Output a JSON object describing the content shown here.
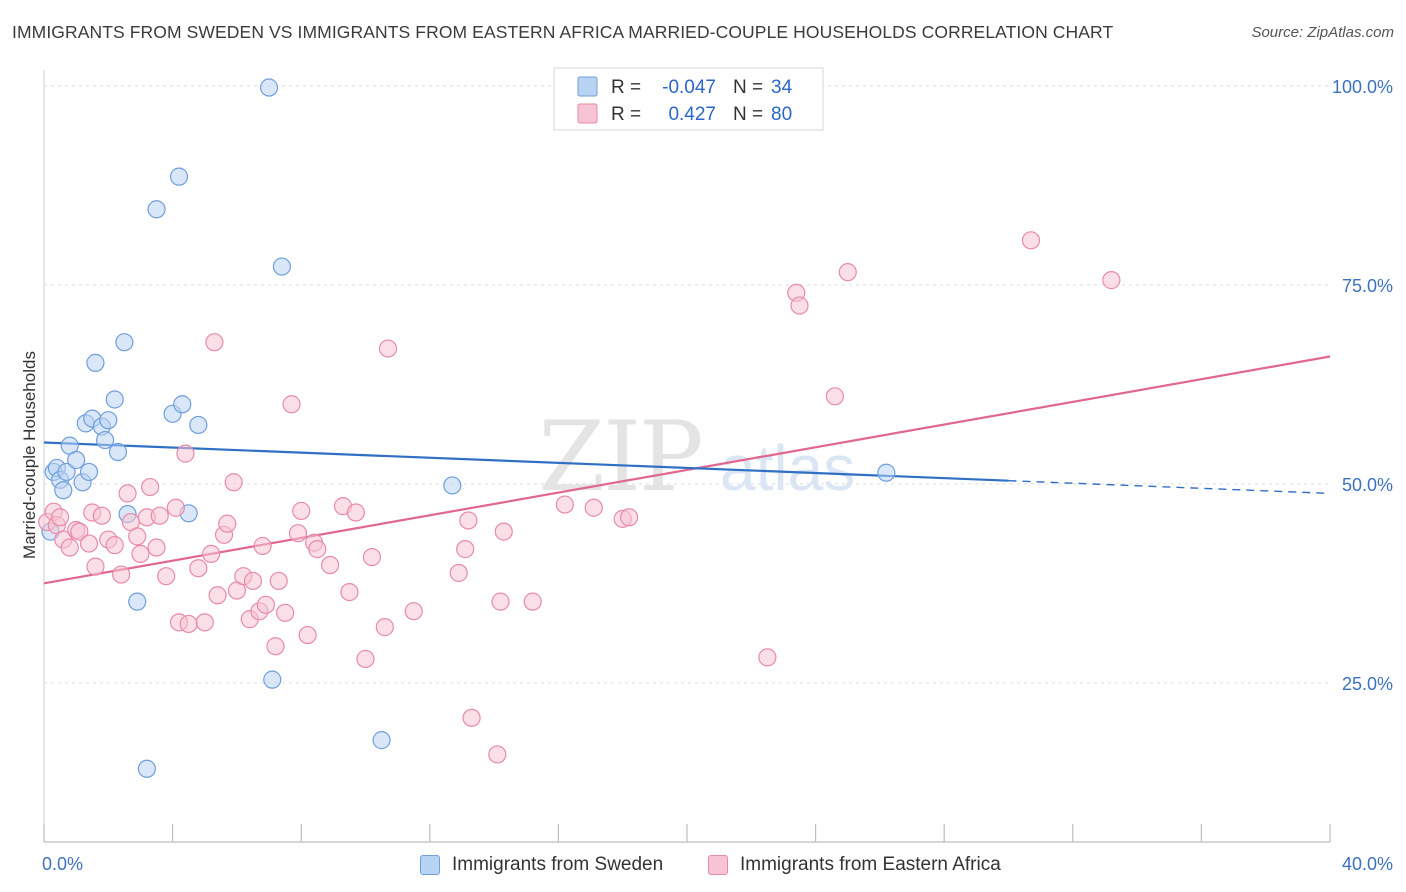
{
  "title": "IMMIGRANTS FROM SWEDEN VS IMMIGRANTS FROM EASTERN AFRICA MARRIED-COUPLE HOUSEHOLDS CORRELATION CHART",
  "source": "Source: ZipAtlas.com",
  "watermark": {
    "zip": "ZIP",
    "atlas": "atlas"
  },
  "colors": {
    "sweden_fill": "#b9d3f2",
    "sweden_stroke": "#6f9fdc",
    "sweden_line": "#2f6fc4",
    "eafrica_fill": "#f6c4d4",
    "eafrica_stroke": "#e88aaa",
    "eafrica_line": "#e0688f",
    "tick_label": "#3c72c0",
    "stat_value": "#2a67c9"
  },
  "stats": [
    {
      "r_label": "R = ",
      "r_value": "-0.047",
      "n_label": "N = ",
      "n_value": "34"
    },
    {
      "r_label": "R = ",
      "r_value": "0.427",
      "n_label": "N = ",
      "n_value": "80"
    }
  ],
  "legend": [
    {
      "label": "Immigrants from Sweden"
    },
    {
      "label": "Immigrants from Eastern Africa"
    }
  ],
  "chart_data": {
    "type": "scatter",
    "title": "IMMIGRANTS FROM SWEDEN VS IMMIGRANTS FROM EASTERN AFRICA MARRIED-COUPLE HOUSEHOLDS CORRELATION CHART",
    "xlabel": "",
    "ylabel": "Married-couple Households",
    "xlim": [
      0,
      40
    ],
    "ylim": [
      5,
      102
    ],
    "x_tick_labels": [
      {
        "value": 0,
        "label": "0.0%"
      },
      {
        "value": 40,
        "label": "40.0%"
      }
    ],
    "y_tick_labels": [
      {
        "value": 100,
        "label": "100.0%"
      },
      {
        "value": 75,
        "label": "75.0%"
      },
      {
        "value": 50,
        "label": "50.0%"
      },
      {
        "value": 25,
        "label": "25.0%"
      }
    ],
    "y_grid": [
      100,
      75,
      50,
      25
    ],
    "series": [
      {
        "name": "Immigrants from Sweden",
        "r": -0.047,
        "n": 34,
        "trend": {
          "x0": 0,
          "y0": 55.2,
          "x1": 30,
          "y1": 50.4,
          "dash_x1": 40,
          "dash_y1": 48.8
        },
        "points": [
          [
            0.2,
            44.0
          ],
          [
            0.3,
            51.5
          ],
          [
            0.4,
            52.0
          ],
          [
            0.5,
            50.5
          ],
          [
            0.6,
            49.2
          ],
          [
            0.7,
            51.5
          ],
          [
            0.8,
            54.8
          ],
          [
            1.0,
            53.0
          ],
          [
            1.2,
            50.2
          ],
          [
            1.3,
            57.6
          ],
          [
            1.4,
            51.5
          ],
          [
            1.5,
            58.2
          ],
          [
            1.6,
            65.2
          ],
          [
            1.8,
            57.2
          ],
          [
            1.9,
            55.5
          ],
          [
            2.0,
            58.0
          ],
          [
            2.2,
            60.6
          ],
          [
            2.3,
            54.0
          ],
          [
            2.5,
            67.8
          ],
          [
            2.6,
            46.2
          ],
          [
            2.9,
            35.2
          ],
          [
            3.2,
            14.2
          ],
          [
            3.5,
            84.5
          ],
          [
            4.0,
            58.8
          ],
          [
            4.2,
            88.6
          ],
          [
            4.3,
            60.0
          ],
          [
            4.5,
            46.3
          ],
          [
            4.8,
            57.4
          ],
          [
            7.0,
            99.8
          ],
          [
            7.1,
            25.4
          ],
          [
            7.4,
            77.3
          ],
          [
            10.5,
            17.8
          ],
          [
            12.7,
            49.8
          ],
          [
            26.2,
            51.4
          ]
        ]
      },
      {
        "name": "Immigrants from Eastern Africa",
        "r": 0.427,
        "n": 80,
        "trend": {
          "x0": 0,
          "y0": 37.5,
          "x1": 40,
          "y1": 66.0
        },
        "points": [
          [
            0.1,
            45.2
          ],
          [
            0.3,
            46.5
          ],
          [
            0.4,
            44.8
          ],
          [
            0.5,
            45.8
          ],
          [
            0.6,
            43.0
          ],
          [
            0.8,
            42.0
          ],
          [
            1.0,
            44.2
          ],
          [
            1.1,
            44.0
          ],
          [
            1.4,
            42.5
          ],
          [
            1.5,
            46.4
          ],
          [
            1.6,
            39.6
          ],
          [
            1.8,
            46.0
          ],
          [
            2.0,
            43.0
          ],
          [
            2.2,
            42.3
          ],
          [
            2.4,
            38.6
          ],
          [
            2.6,
            48.8
          ],
          [
            2.7,
            45.2
          ],
          [
            2.9,
            43.4
          ],
          [
            3.0,
            41.2
          ],
          [
            3.2,
            45.8
          ],
          [
            3.3,
            49.6
          ],
          [
            3.5,
            42.0
          ],
          [
            3.6,
            46.0
          ],
          [
            3.8,
            38.4
          ],
          [
            4.1,
            47.0
          ],
          [
            4.2,
            32.6
          ],
          [
            4.4,
            53.8
          ],
          [
            4.5,
            32.4
          ],
          [
            4.8,
            39.4
          ],
          [
            5.0,
            32.6
          ],
          [
            5.2,
            41.2
          ],
          [
            5.3,
            67.8
          ],
          [
            5.4,
            36.0
          ],
          [
            5.6,
            43.6
          ],
          [
            5.7,
            45.0
          ],
          [
            5.9,
            50.2
          ],
          [
            6.0,
            36.6
          ],
          [
            6.2,
            38.4
          ],
          [
            6.4,
            33.0
          ],
          [
            6.5,
            37.8
          ],
          [
            6.7,
            34.0
          ],
          [
            6.8,
            42.2
          ],
          [
            6.9,
            34.8
          ],
          [
            7.2,
            29.6
          ],
          [
            7.3,
            37.8
          ],
          [
            7.5,
            33.8
          ],
          [
            7.7,
            60.0
          ],
          [
            7.9,
            43.8
          ],
          [
            8.0,
            46.6
          ],
          [
            8.2,
            31.0
          ],
          [
            8.4,
            42.6
          ],
          [
            8.5,
            41.8
          ],
          [
            8.9,
            39.8
          ],
          [
            9.3,
            47.2
          ],
          [
            9.5,
            36.4
          ],
          [
            9.7,
            46.4
          ],
          [
            10.0,
            28.0
          ],
          [
            10.2,
            40.8
          ],
          [
            10.6,
            32.0
          ],
          [
            10.7,
            67.0
          ],
          [
            11.5,
            34.0
          ],
          [
            12.9,
            38.8
          ],
          [
            13.1,
            41.8
          ],
          [
            13.2,
            45.4
          ],
          [
            13.3,
            20.6
          ],
          [
            14.1,
            16.0
          ],
          [
            14.2,
            35.2
          ],
          [
            14.3,
            44.0
          ],
          [
            15.2,
            35.2
          ],
          [
            16.2,
            47.4
          ],
          [
            17.1,
            47.0
          ],
          [
            18.0,
            45.6
          ],
          [
            18.2,
            45.8
          ],
          [
            22.5,
            28.2
          ],
          [
            23.4,
            74.0
          ],
          [
            23.5,
            72.4
          ],
          [
            24.6,
            61.0
          ],
          [
            25.0,
            76.6
          ],
          [
            30.7,
            80.6
          ],
          [
            33.2,
            75.6
          ]
        ]
      }
    ]
  }
}
